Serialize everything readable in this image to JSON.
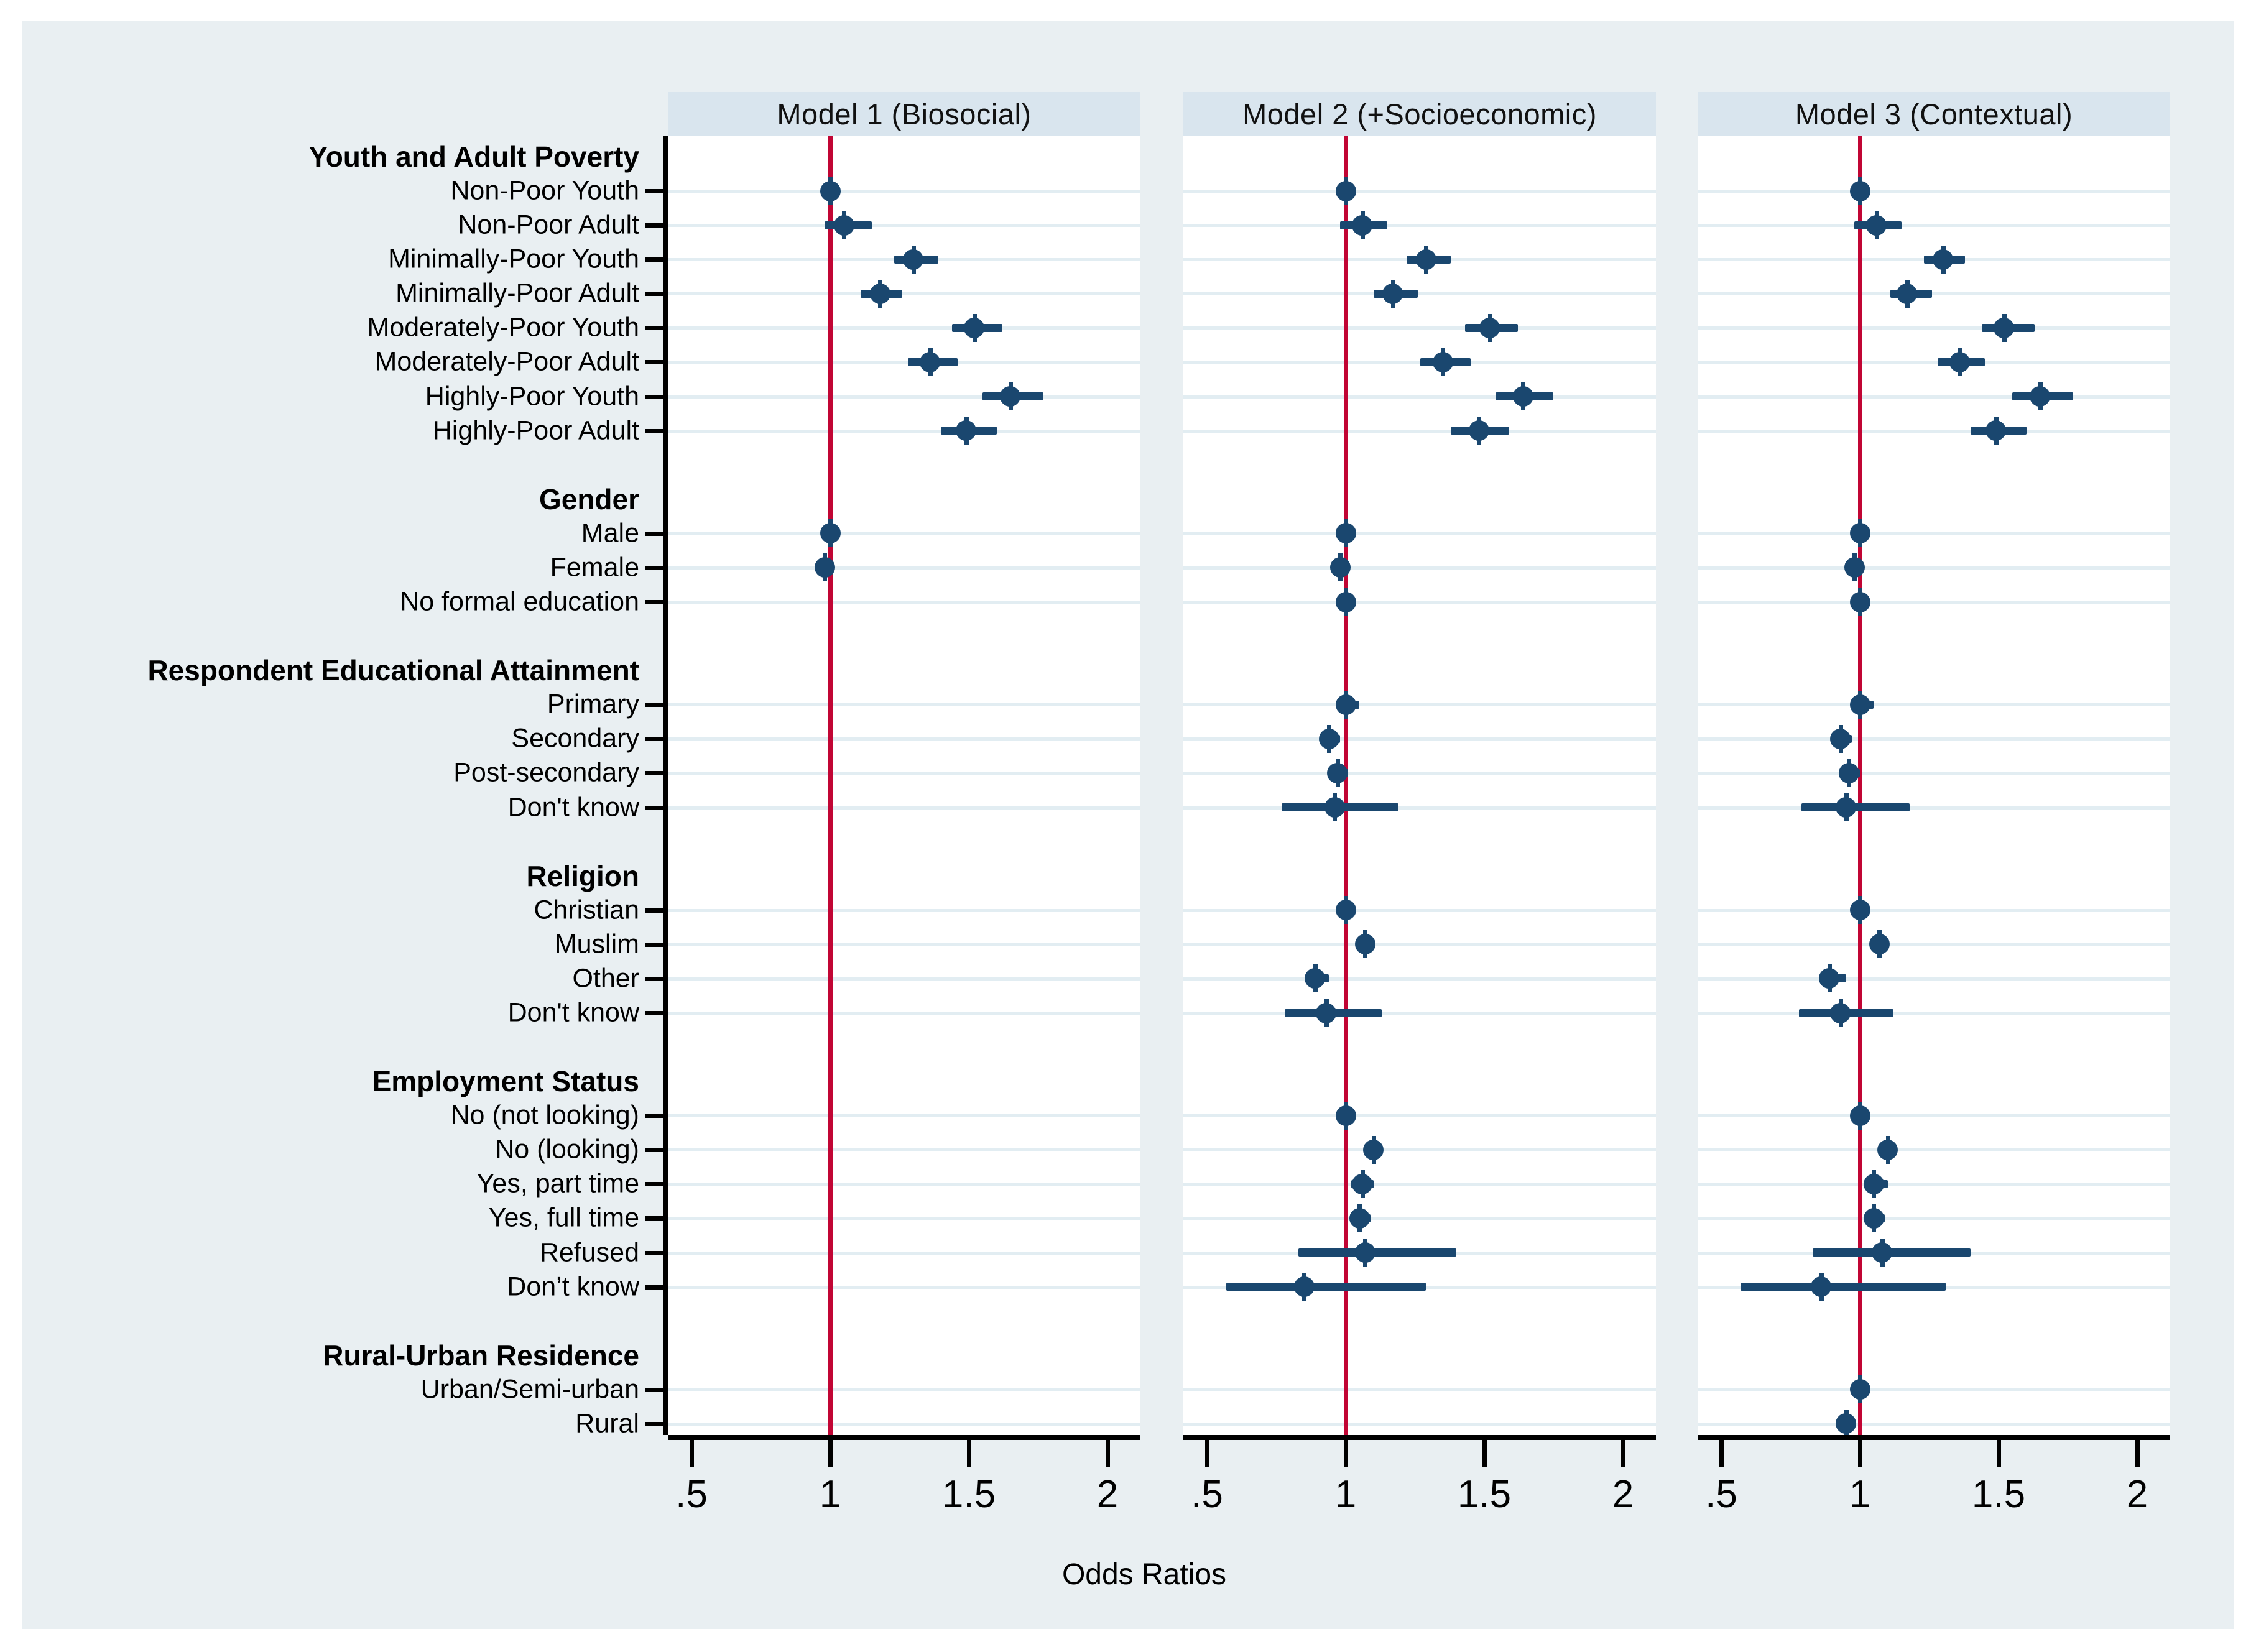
{
  "figure": {
    "x_axis_title": "Odds Ratios",
    "colors": {
      "canvas_bg": "#e9eff2",
      "plot_bg": "#ffffff",
      "panel_header_bg": "#d9e5ee",
      "marker": "#1a476f",
      "reference_line": "#c10534",
      "gridline": "#e2edf2",
      "axis": "#000000"
    }
  },
  "chart_data": {
    "type": "forest",
    "title": "",
    "xlabel": "Odds Ratios",
    "x_tick_values": [
      0.5,
      1,
      1.5,
      2
    ],
    "x_tick_labels": [
      ".5",
      "1",
      "1.5",
      "2"
    ],
    "xlim": [
      0.42,
      2.12
    ],
    "reference_line": 1.0,
    "grid": "horizontal-item-rows",
    "legend_position": "none",
    "panels": [
      {
        "key": "m1",
        "title": "Model 1 (Biosocial)"
      },
      {
        "key": "m2",
        "title": "Model 2 (+Socioeconomic)"
      },
      {
        "key": "m3",
        "title": "Model 3 (Contextual)"
      }
    ],
    "rows": [
      {
        "type": "header",
        "label": "Youth and Adult Poverty"
      },
      {
        "type": "item",
        "label": "Non-Poor Youth",
        "m1": {
          "or": 1.0,
          "lo": 0.98,
          "hi": 1.02
        },
        "m2": {
          "or": 1.0,
          "lo": 0.98,
          "hi": 1.02
        },
        "m3": {
          "or": 1.0,
          "lo": 0.98,
          "hi": 1.02
        }
      },
      {
        "type": "item",
        "label": "Non-Poor Adult",
        "m1": {
          "or": 1.05,
          "lo": 0.98,
          "hi": 1.15
        },
        "m2": {
          "or": 1.06,
          "lo": 0.98,
          "hi": 1.15
        },
        "m3": {
          "or": 1.06,
          "lo": 0.98,
          "hi": 1.15
        }
      },
      {
        "type": "item",
        "label": "Minimally-Poor Youth",
        "m1": {
          "or": 1.3,
          "lo": 1.23,
          "hi": 1.39
        },
        "m2": {
          "or": 1.29,
          "lo": 1.22,
          "hi": 1.38
        },
        "m3": {
          "or": 1.3,
          "lo": 1.23,
          "hi": 1.38
        }
      },
      {
        "type": "item",
        "label": "Minimally-Poor Adult",
        "m1": {
          "or": 1.18,
          "lo": 1.11,
          "hi": 1.26
        },
        "m2": {
          "or": 1.17,
          "lo": 1.1,
          "hi": 1.26
        },
        "m3": {
          "or": 1.17,
          "lo": 1.11,
          "hi": 1.26
        }
      },
      {
        "type": "item",
        "label": "Moderately-Poor Youth",
        "m1": {
          "or": 1.52,
          "lo": 1.44,
          "hi": 1.62
        },
        "m2": {
          "or": 1.52,
          "lo": 1.43,
          "hi": 1.62
        },
        "m3": {
          "or": 1.52,
          "lo": 1.44,
          "hi": 1.63
        }
      },
      {
        "type": "item",
        "label": "Moderately-Poor Adult",
        "m1": {
          "or": 1.36,
          "lo": 1.28,
          "hi": 1.46
        },
        "m2": {
          "or": 1.35,
          "lo": 1.27,
          "hi": 1.45
        },
        "m3": {
          "or": 1.36,
          "lo": 1.28,
          "hi": 1.45
        }
      },
      {
        "type": "item",
        "label": "Highly-Poor Youth",
        "m1": {
          "or": 1.65,
          "lo": 1.55,
          "hi": 1.77
        },
        "m2": {
          "or": 1.64,
          "lo": 1.54,
          "hi": 1.75
        },
        "m3": {
          "or": 1.65,
          "lo": 1.55,
          "hi": 1.77
        }
      },
      {
        "type": "item",
        "label": "Highly-Poor Adult",
        "m1": {
          "or": 1.49,
          "lo": 1.4,
          "hi": 1.6
        },
        "m2": {
          "or": 1.48,
          "lo": 1.38,
          "hi": 1.59
        },
        "m3": {
          "or": 1.49,
          "lo": 1.4,
          "hi": 1.6
        }
      },
      {
        "type": "spacer",
        "label": ""
      },
      {
        "type": "header",
        "label": "Gender"
      },
      {
        "type": "item",
        "label": "Male",
        "m1": {
          "or": 1.0,
          "lo": 0.98,
          "hi": 1.02
        },
        "m2": {
          "or": 1.0,
          "lo": 0.98,
          "hi": 1.02
        },
        "m3": {
          "or": 1.0,
          "lo": 0.98,
          "hi": 1.02
        }
      },
      {
        "type": "item",
        "label": "Female",
        "m1": {
          "or": 0.98,
          "lo": 0.95,
          "hi": 1.0
        },
        "m2": {
          "or": 0.98,
          "lo": 0.95,
          "hi": 1.0
        },
        "m3": {
          "or": 0.98,
          "lo": 0.95,
          "hi": 1.0
        }
      },
      {
        "type": "item",
        "label": "No formal education",
        "m1": null,
        "m2": {
          "or": 1.0,
          "lo": 0.98,
          "hi": 1.02
        },
        "m3": {
          "or": 1.0,
          "lo": 0.98,
          "hi": 1.02
        }
      },
      {
        "type": "spacer",
        "label": ""
      },
      {
        "type": "header",
        "label": "Respondent Educational Attainment"
      },
      {
        "type": "item",
        "label": "Primary",
        "m1": null,
        "m2": {
          "or": 1.0,
          "lo": 0.97,
          "hi": 1.05
        },
        "m3": {
          "or": 1.0,
          "lo": 0.97,
          "hi": 1.05
        }
      },
      {
        "type": "item",
        "label": "Secondary",
        "m1": null,
        "m2": {
          "or": 0.94,
          "lo": 0.91,
          "hi": 0.98
        },
        "m3": {
          "or": 0.93,
          "lo": 0.9,
          "hi": 0.97
        }
      },
      {
        "type": "item",
        "label": "Post-secondary",
        "m1": null,
        "m2": {
          "or": 0.97,
          "lo": 0.94,
          "hi": 1.01
        },
        "m3": {
          "or": 0.96,
          "lo": 0.93,
          "hi": 1.0
        }
      },
      {
        "type": "item",
        "label": "Don't know",
        "m1": null,
        "m2": {
          "or": 0.96,
          "lo": 0.77,
          "hi": 1.19
        },
        "m3": {
          "or": 0.95,
          "lo": 0.79,
          "hi": 1.18
        }
      },
      {
        "type": "spacer",
        "label": ""
      },
      {
        "type": "header",
        "label": "Religion"
      },
      {
        "type": "item",
        "label": "Christian",
        "m1": null,
        "m2": {
          "or": 1.0,
          "lo": 0.98,
          "hi": 1.02
        },
        "m3": {
          "or": 1.0,
          "lo": 0.98,
          "hi": 1.02
        }
      },
      {
        "type": "item",
        "label": "Muslim",
        "m1": null,
        "m2": {
          "or": 1.07,
          "lo": 1.04,
          "hi": 1.1
        },
        "m3": {
          "or": 1.07,
          "lo": 1.04,
          "hi": 1.1
        }
      },
      {
        "type": "item",
        "label": "Other",
        "m1": null,
        "m2": {
          "or": 0.89,
          "lo": 0.86,
          "hi": 0.94
        },
        "m3": {
          "or": 0.89,
          "lo": 0.86,
          "hi": 0.95
        }
      },
      {
        "type": "item",
        "label": "Don't know",
        "m1": null,
        "m2": {
          "or": 0.93,
          "lo": 0.78,
          "hi": 1.13
        },
        "m3": {
          "or": 0.93,
          "lo": 0.78,
          "hi": 1.12
        }
      },
      {
        "type": "spacer",
        "label": ""
      },
      {
        "type": "header",
        "label": "Employment Status"
      },
      {
        "type": "item",
        "label": "No (not looking)",
        "m1": null,
        "m2": {
          "or": 1.0,
          "lo": 0.98,
          "hi": 1.02
        },
        "m3": {
          "or": 1.0,
          "lo": 0.98,
          "hi": 1.02
        }
      },
      {
        "type": "item",
        "label": "No (looking)",
        "m1": null,
        "m2": {
          "or": 1.1,
          "lo": 1.07,
          "hi": 1.13
        },
        "m3": {
          "or": 1.1,
          "lo": 1.07,
          "hi": 1.13
        }
      },
      {
        "type": "item",
        "label": "Yes, part time",
        "m1": null,
        "m2": {
          "or": 1.06,
          "lo": 1.02,
          "hi": 1.1
        },
        "m3": {
          "or": 1.05,
          "lo": 1.02,
          "hi": 1.1
        }
      },
      {
        "type": "item",
        "label": "Yes, full time",
        "m1": null,
        "m2": {
          "or": 1.05,
          "lo": 1.02,
          "hi": 1.09
        },
        "m3": {
          "or": 1.05,
          "lo": 1.02,
          "hi": 1.09
        }
      },
      {
        "type": "item",
        "label": "Refused",
        "m1": null,
        "m2": {
          "or": 1.07,
          "lo": 0.83,
          "hi": 1.4
        },
        "m3": {
          "or": 1.08,
          "lo": 0.83,
          "hi": 1.4
        }
      },
      {
        "type": "item",
        "label": "Don’t know",
        "m1": null,
        "m2": {
          "or": 0.85,
          "lo": 0.57,
          "hi": 1.29
        },
        "m3": {
          "or": 0.86,
          "lo": 0.57,
          "hi": 1.31
        }
      },
      {
        "type": "spacer",
        "label": ""
      },
      {
        "type": "header",
        "label": "Rural-Urban Residence"
      },
      {
        "type": "item",
        "label": "Urban/Semi-urban",
        "m1": null,
        "m2": null,
        "m3": {
          "or": 1.0,
          "lo": 0.98,
          "hi": 1.03
        }
      },
      {
        "type": "item",
        "label": "Rural",
        "m1": null,
        "m2": null,
        "m3": {
          "or": 0.95,
          "lo": 0.92,
          "hi": 0.97
        }
      }
    ]
  }
}
